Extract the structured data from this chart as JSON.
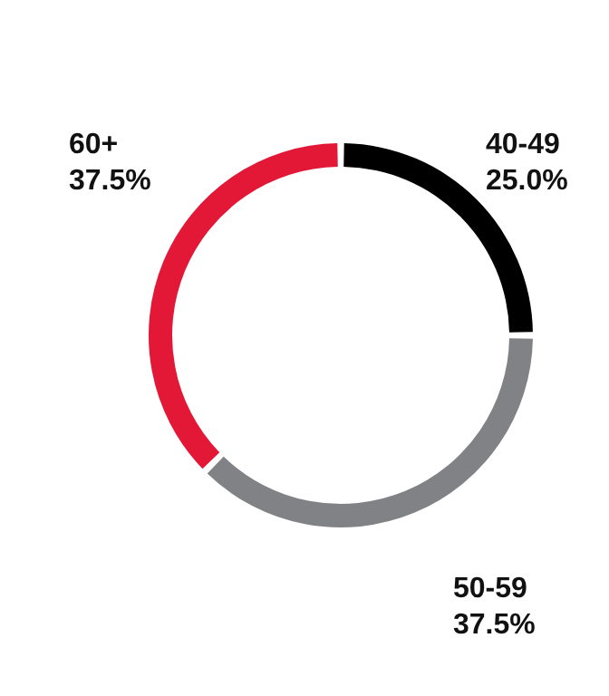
{
  "chart_data": {
    "type": "donut",
    "categories": [
      "40-49",
      "50-59",
      "60+"
    ],
    "values": [
      25,
      37.5,
      37.5
    ],
    "colors": [
      "#000000",
      "#808285",
      "#e31837"
    ],
    "value_labels": [
      "25.0%",
      "37.5%",
      "37.5%"
    ],
    "legend": false
  }
}
